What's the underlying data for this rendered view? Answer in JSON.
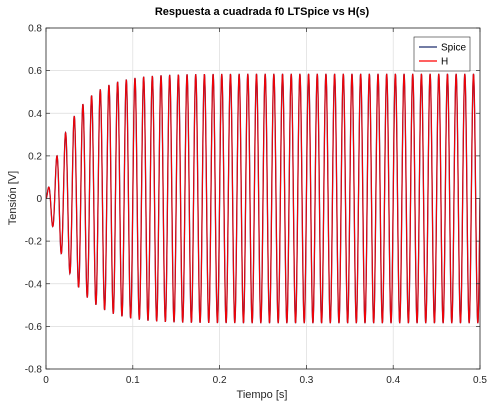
{
  "chart_data": {
    "type": "line",
    "title": "Respuesta a cuadrada f0 LTSpice vs H(s)",
    "xlabel": "Tiempo [s]",
    "ylabel": "Tensión [V]",
    "xlim": [
      0,
      0.5
    ],
    "ylim": [
      -0.8,
      0.8
    ],
    "xticks": [
      0,
      0.1,
      0.2,
      0.3,
      0.4,
      0.5
    ],
    "xtick_labels": [
      "0",
      "0.1",
      "0.2",
      "0.3",
      "0.4",
      "0.5"
    ],
    "yticks": [
      -0.8,
      -0.6,
      -0.4,
      -0.2,
      0,
      0.2,
      0.4,
      0.6,
      0.8
    ],
    "ytick_labels": [
      "-0.8",
      "-0.6",
      "-0.4",
      "-0.2",
      "0",
      "0.2",
      "0.4",
      "0.6",
      "0.8"
    ],
    "grid": true,
    "legend_position": "top-right",
    "signal": {
      "frequency_hz": 100,
      "steady_amplitude": 0.585,
      "time_constant_s": 0.03,
      "samples": 2000
    },
    "series": [
      {
        "name": "Spice",
        "color": "#1f2d6e"
      },
      {
        "name": "H",
        "color": "#ff0000"
      }
    ]
  }
}
